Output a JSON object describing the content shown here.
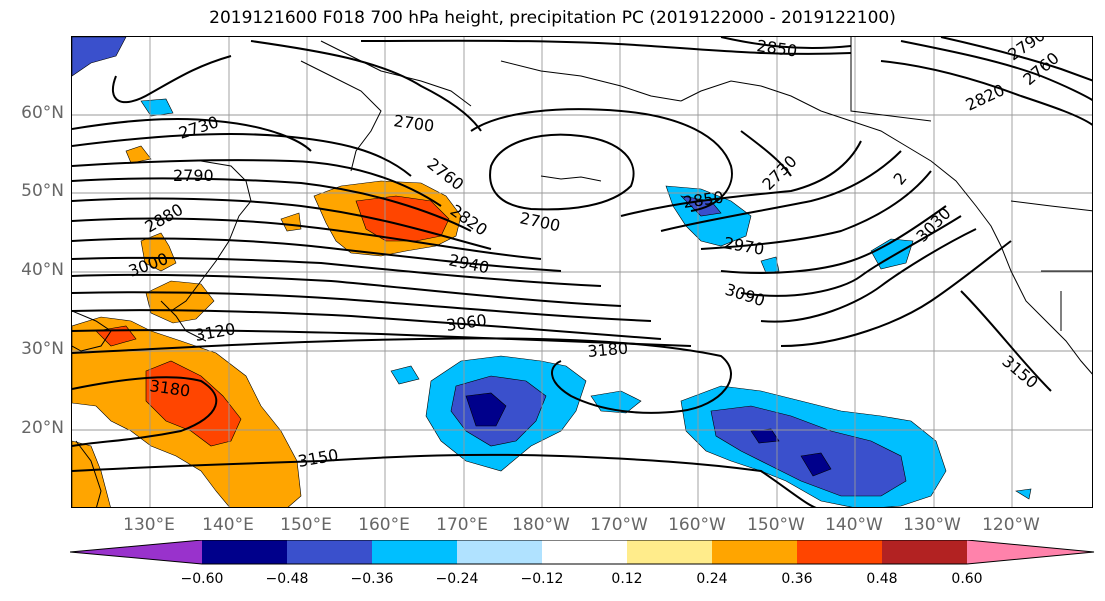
{
  "title": "2019121600 F018 700 hPa height, precipitation PC (2019122000 - 2019122100)",
  "map": {
    "lat_labels": [
      "60°N",
      "50°N",
      "40°N",
      "30°N",
      "20°N"
    ],
    "lon_labels": [
      "130°E",
      "140°E",
      "150°E",
      "160°E",
      "170°E",
      "180°W",
      "170°W",
      "160°W",
      "150°W",
      "140°W",
      "130°W",
      "120°W"
    ],
    "contour_labels": [
      {
        "id": "c2850a",
        "text": "2850"
      },
      {
        "id": "c2700a",
        "text": "2700"
      },
      {
        "id": "c2730a",
        "text": "2730"
      },
      {
        "id": "c2790a",
        "text": "2790"
      },
      {
        "id": "c2760a",
        "text": "2760"
      },
      {
        "id": "c2880a",
        "text": "2880"
      },
      {
        "id": "c2820a",
        "text": "2820"
      },
      {
        "id": "c2700b",
        "text": "2700"
      },
      {
        "id": "c2850b",
        "text": "2850"
      },
      {
        "id": "c2730b",
        "text": "2730"
      },
      {
        "id": "c2970a",
        "text": "2970"
      },
      {
        "id": "c3000a",
        "text": "3000"
      },
      {
        "id": "c2940a",
        "text": "2940"
      },
      {
        "id": "c3090a",
        "text": "3090"
      },
      {
        "id": "c3030a",
        "text": "3030"
      },
      {
        "id": "c3060a",
        "text": "3060"
      },
      {
        "id": "c3120a",
        "text": "3120"
      },
      {
        "id": "c3180a",
        "text": "3180"
      },
      {
        "id": "c3180b",
        "text": "3180"
      },
      {
        "id": "c3150a",
        "text": "3150"
      },
      {
        "id": "c3150b",
        "text": "3150"
      },
      {
        "id": "c2790b",
        "text": "2790"
      },
      {
        "id": "c2760b",
        "text": "2760"
      },
      {
        "id": "c2820b",
        "text": "2820"
      },
      {
        "id": "c2_",
        "text": "2"
      }
    ]
  },
  "colorbar": {
    "colors": [
      "#9932cc",
      "#00008b",
      "#3a50cc",
      "#00bfff",
      "#b0e2ff",
      "#ffffff",
      "#ffec8b",
      "#ffa500",
      "#ff4500",
      "#b22222",
      "#ff82ab"
    ],
    "tick_labels": [
      "−0.60",
      "−0.48",
      "−0.36",
      "−0.24",
      "−0.12",
      "0.12",
      "0.24",
      "0.36",
      "0.48",
      "0.60"
    ]
  }
}
